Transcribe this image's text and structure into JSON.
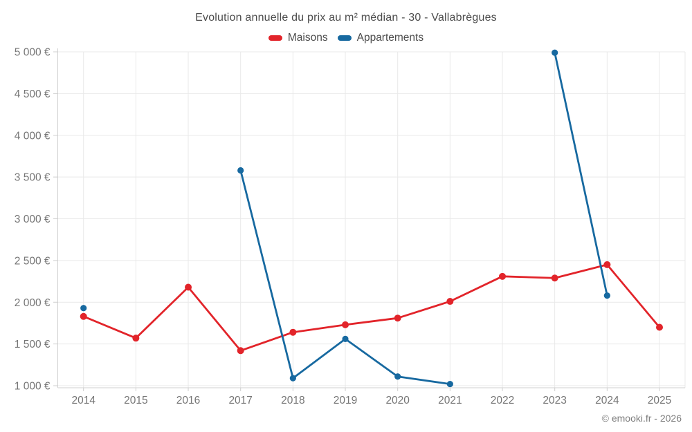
{
  "page": {
    "title": "Evolution annuelle du prix au m² médian - 30 - Vallabrègues",
    "footer_credit": "© emooki.fr - 2026"
  },
  "legend": {
    "items": [
      {
        "label": "Maisons",
        "color": "#e2242a"
      },
      {
        "label": "Appartements",
        "color": "#1769a0"
      }
    ]
  },
  "chart_data": {
    "type": "line",
    "title": "Evolution annuelle du prix au m² médian - 30 - Vallabrègues",
    "x": [
      2014,
      2015,
      2016,
      2017,
      2018,
      2019,
      2020,
      2021,
      2022,
      2023,
      2024,
      2025
    ],
    "series": [
      {
        "name": "Maisons",
        "color": "#e2242a",
        "values": [
          1830,
          1570,
          2180,
          1420,
          1640,
          1730,
          1810,
          2010,
          2310,
          2290,
          2450,
          1700
        ]
      },
      {
        "name": "Appartements",
        "color": "#1769a0",
        "values": [
          1930,
          null,
          null,
          3580,
          1090,
          1560,
          1110,
          1020,
          null,
          4990,
          2080,
          null
        ]
      }
    ],
    "xlabel": "",
    "ylabel": "",
    "ylim": [
      1000,
      5000
    ],
    "yticks": [
      1000,
      1500,
      2000,
      2500,
      3000,
      3500,
      4000,
      4500,
      5000
    ],
    "ytick_labels": [
      "1 000 €",
      "1 500 €",
      "2 000 €",
      "2 500 €",
      "3 000 €",
      "3 500 €",
      "4 000 €",
      "4 500 €",
      "5 000 €"
    ],
    "grid": true,
    "legend_position": "top",
    "colors": {
      "grid": "#e9e9e9",
      "axis": "#cfcfcf",
      "tick_label": "#757575",
      "title": "#4c4c4c"
    }
  }
}
